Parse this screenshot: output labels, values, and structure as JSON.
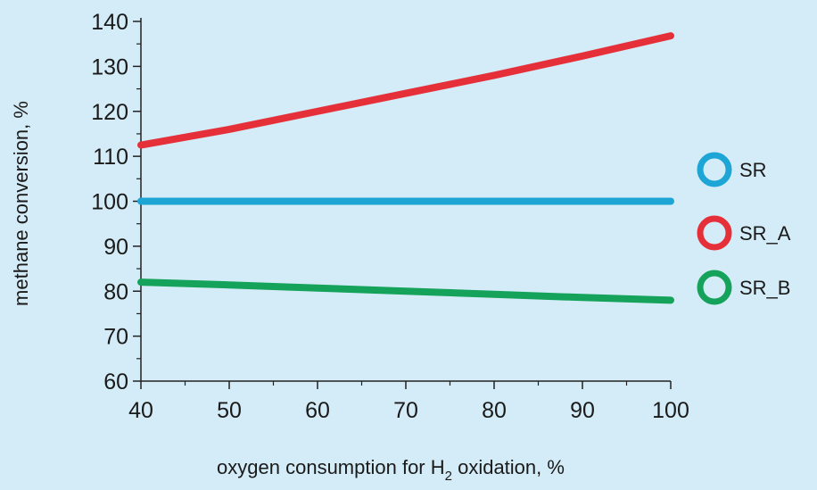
{
  "chart_data": {
    "type": "line",
    "xlabel": "oxygen consumption for H",
    "xlabel_sub": "2",
    "xlabel_suffix": " oxidation, %",
    "ylabel": "methane conversion, %",
    "xlim": [
      40,
      100
    ],
    "ylim": [
      60,
      140
    ],
    "x_ticks": [
      40,
      50,
      60,
      70,
      80,
      90,
      100
    ],
    "y_ticks": [
      60,
      70,
      80,
      90,
      100,
      110,
      120,
      130,
      140
    ],
    "x_tick_labels": [
      "40",
      "50",
      "60",
      "70",
      "80",
      "90",
      "100"
    ],
    "y_tick_labels": [
      "60",
      "70",
      "80",
      "90",
      "100",
      "110",
      "120",
      "130",
      "140"
    ],
    "grid": false,
    "legend_position": "right",
    "series": [
      {
        "name": "SR",
        "color": "#1da5d6",
        "x": [
          40,
          50,
          60,
          70,
          80,
          90,
          100
        ],
        "y": [
          100,
          100,
          100,
          100,
          100,
          100,
          100
        ]
      },
      {
        "name": "SR_A",
        "color": "#e5303a",
        "x": [
          40,
          50,
          60,
          70,
          80,
          90,
          100
        ],
        "y": [
          112.5,
          116.0,
          120.0,
          124.0,
          128.0,
          132.3,
          136.8
        ]
      },
      {
        "name": "SR_B",
        "color": "#15a25a",
        "x": [
          40,
          50,
          60,
          70,
          80,
          90,
          100
        ],
        "y": [
          82.0,
          81.4,
          80.7,
          80.0,
          79.3,
          78.6,
          78.0
        ]
      }
    ]
  }
}
